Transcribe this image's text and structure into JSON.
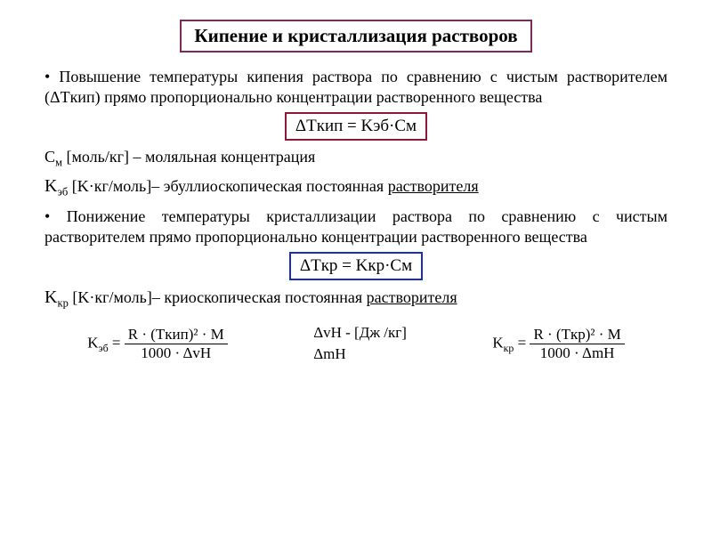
{
  "title": {
    "text": "Кипение и кристаллизация растворов",
    "border_color": "#7b2b5a"
  },
  "section1": {
    "para": "Повышение температуры кипения раствора по сравнению с чистым растворителем (ΔTкип) прямо пропорционально концентрации растворенного вещества",
    "formula": "ΔTкип = Kэб·Cм",
    "box_color": "#8b1a3a"
  },
  "defs1": {
    "cm_sym": "C",
    "cm_sub": "м",
    "cm_unit": " [моль/кг] ",
    "cm_desc": "– моляльная концентрация",
    "keb_sym": "K",
    "keb_sub": "эб",
    "keb_unit": " [K·кг/моль]",
    "keb_desc": "– эбуллиоскопическая постоянная ",
    "keb_tail": "растворителя"
  },
  "section2": {
    "para": "Понижение температуры кристаллизации раствора по сравнению с чистым растворителем прямо пропорционально концентрации растворенного вещества",
    "formula": "ΔTкр = Kкр·Cм",
    "box_color": "#1a2fbb"
  },
  "defs2": {
    "kkr_sym": "K",
    "kkr_sub": "кр",
    "kkr_unit": " [K·кг/моль]",
    "kkr_desc": "– криоскопическая постоянная ",
    "kkr_tail": "растворителя"
  },
  "eq": {
    "keb_lhs": "K",
    "keb_lhs_sub": "эб",
    "eq_sign": " = ",
    "keb_num": "R · (Tкип)² · M",
    "keb_den": "1000 · ΔvH",
    "mid1": "ΔvH - [Дж /кг]",
    "mid2": "ΔmH",
    "kkr_lhs": "K",
    "kkr_lhs_sub": "кр",
    "kkr_num": "R · (Tкр)² · M",
    "kkr_den": "1000 · ΔmH"
  },
  "colors": {
    "text": "#000000",
    "bg": "#ffffff"
  }
}
